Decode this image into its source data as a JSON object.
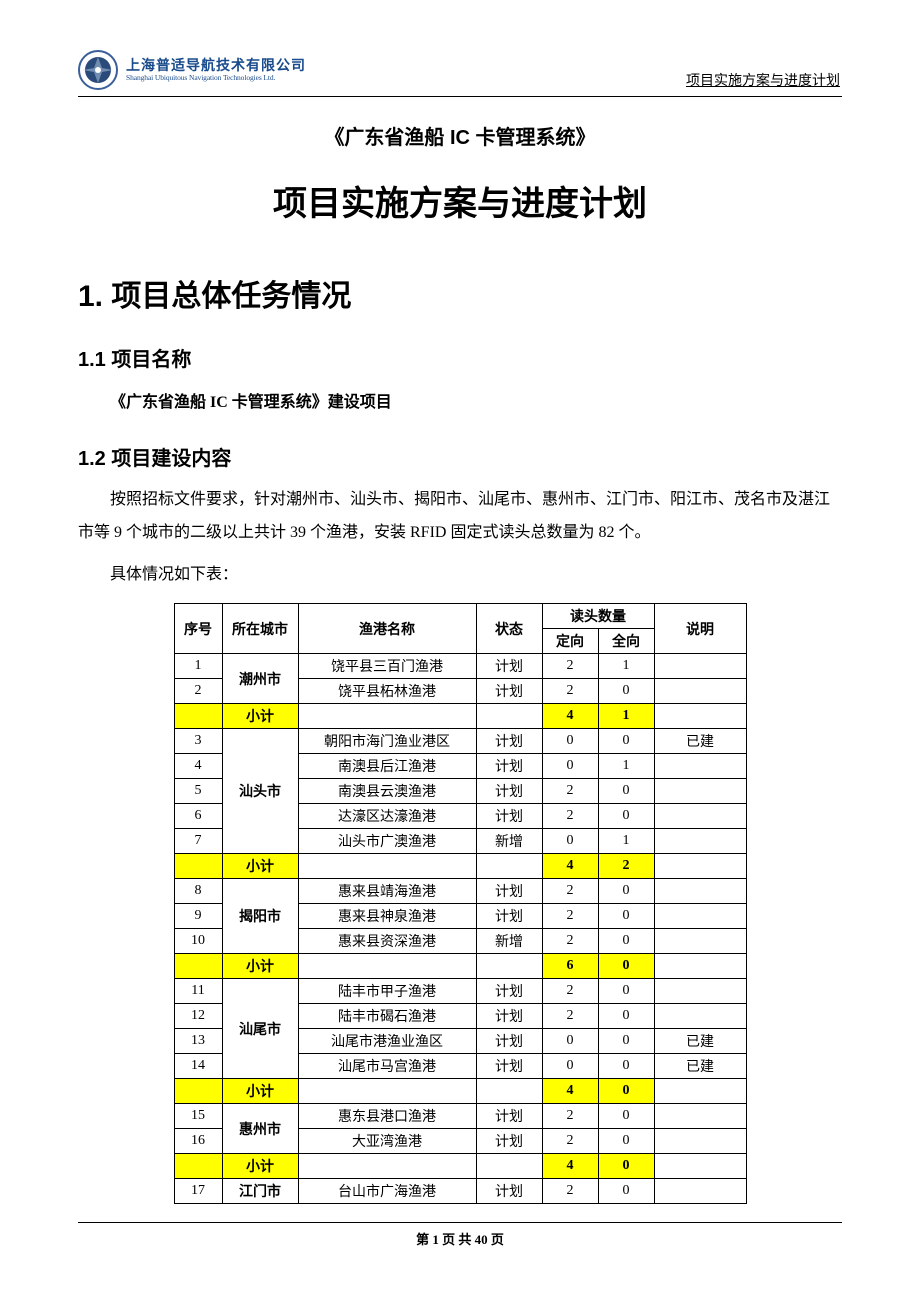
{
  "header": {
    "company_cn": "上海普适导航技术有限公司",
    "company_en": "Shanghai Ubiquitous Navigation Technologies Ltd.",
    "doc_type": "项目实施方案与进度计划",
    "logo_colors": {
      "ring": "#3a5f9a",
      "inner": "#2a4a7a",
      "accent": "#8fa8c8"
    }
  },
  "titles": {
    "subtitle": "《广东省渔船 IC 卡管理系统》",
    "main": "项目实施方案与进度计划",
    "h1": "1.  项目总体任务情况",
    "h2a": "1.1 项目名称",
    "h2a_body": "《广东省渔船 IC 卡管理系统》建设项目",
    "h2b": "1.2 项目建设内容",
    "h2b_body": "按照招标文件要求，针对潮州市、汕头市、揭阳市、汕尾市、惠州市、江门市、阳江市、茂名市及湛江市等 9 个城市的二级以上共计 39 个渔港，安装 RFID 固定式读头总数量为 82 个。",
    "table_intro": "具体情况如下表："
  },
  "table": {
    "subtotal_label": "小计",
    "columns": {
      "seq": "序号",
      "city": "所在城市",
      "port": "渔港名称",
      "status": "状态",
      "reader_group": "读头数量",
      "reader_a": "定向",
      "reader_b": "全向",
      "note": "说明"
    },
    "groups": [
      {
        "city": "潮州市",
        "rows": [
          {
            "seq": "1",
            "port": "饶平县三百门渔港",
            "status": "计划",
            "a": "2",
            "b": "1",
            "note": ""
          },
          {
            "seq": "2",
            "port": "饶平县柘林渔港",
            "status": "计划",
            "a": "2",
            "b": "0",
            "note": ""
          }
        ],
        "sub": {
          "a": "4",
          "b": "1"
        }
      },
      {
        "city": "汕头市",
        "rows": [
          {
            "seq": "3",
            "port": "朝阳市海门渔业港区",
            "status": "计划",
            "a": "0",
            "b": "0",
            "note": "已建"
          },
          {
            "seq": "4",
            "port": "南澳县后江渔港",
            "status": "计划",
            "a": "0",
            "b": "1",
            "note": ""
          },
          {
            "seq": "5",
            "port": "南澳县云澳渔港",
            "status": "计划",
            "a": "2",
            "b": "0",
            "note": ""
          },
          {
            "seq": "6",
            "port": "达濠区达濠渔港",
            "status": "计划",
            "a": "2",
            "b": "0",
            "note": ""
          },
          {
            "seq": "7",
            "port": "汕头市广澳渔港",
            "status": "新增",
            "a": "0",
            "b": "1",
            "note": ""
          }
        ],
        "sub": {
          "a": "4",
          "b": "2"
        }
      },
      {
        "city": "揭阳市",
        "rows": [
          {
            "seq": "8",
            "port": "惠来县靖海渔港",
            "status": "计划",
            "a": "2",
            "b": "0",
            "note": ""
          },
          {
            "seq": "9",
            "port": "惠来县神泉渔港",
            "status": "计划",
            "a": "2",
            "b": "0",
            "note": ""
          },
          {
            "seq": "10",
            "port": "惠来县资深渔港",
            "status": "新增",
            "a": "2",
            "b": "0",
            "note": ""
          }
        ],
        "sub": {
          "a": "6",
          "b": "0"
        }
      },
      {
        "city": "汕尾市",
        "rows": [
          {
            "seq": "11",
            "port": "陆丰市甲子渔港",
            "status": "计划",
            "a": "2",
            "b": "0",
            "note": ""
          },
          {
            "seq": "12",
            "port": "陆丰市碣石渔港",
            "status": "计划",
            "a": "2",
            "b": "0",
            "note": ""
          },
          {
            "seq": "13",
            "port": "汕尾市港渔业渔区",
            "status": "计划",
            "a": "0",
            "b": "0",
            "note": "已建"
          },
          {
            "seq": "14",
            "port": "汕尾市马宫渔港",
            "status": "计划",
            "a": "0",
            "b": "0",
            "note": "已建"
          }
        ],
        "sub": {
          "a": "4",
          "b": "0"
        }
      },
      {
        "city": "惠州市",
        "rows": [
          {
            "seq": "15",
            "port": "惠东县港口渔港",
            "status": "计划",
            "a": "2",
            "b": "0",
            "note": ""
          },
          {
            "seq": "16",
            "port": "大亚湾渔港",
            "status": "计划",
            "a": "2",
            "b": "0",
            "note": ""
          }
        ],
        "sub": {
          "a": "4",
          "b": "0"
        }
      },
      {
        "city": "江门市",
        "rows": [
          {
            "seq": "17",
            "port": "台山市广海渔港",
            "status": "计划",
            "a": "2",
            "b": "0",
            "note": ""
          }
        ],
        "sub": null
      }
    ]
  },
  "footer": {
    "page_text": "第 1 页 共 40 页"
  },
  "palette": {
    "highlight": "#ffff00"
  }
}
